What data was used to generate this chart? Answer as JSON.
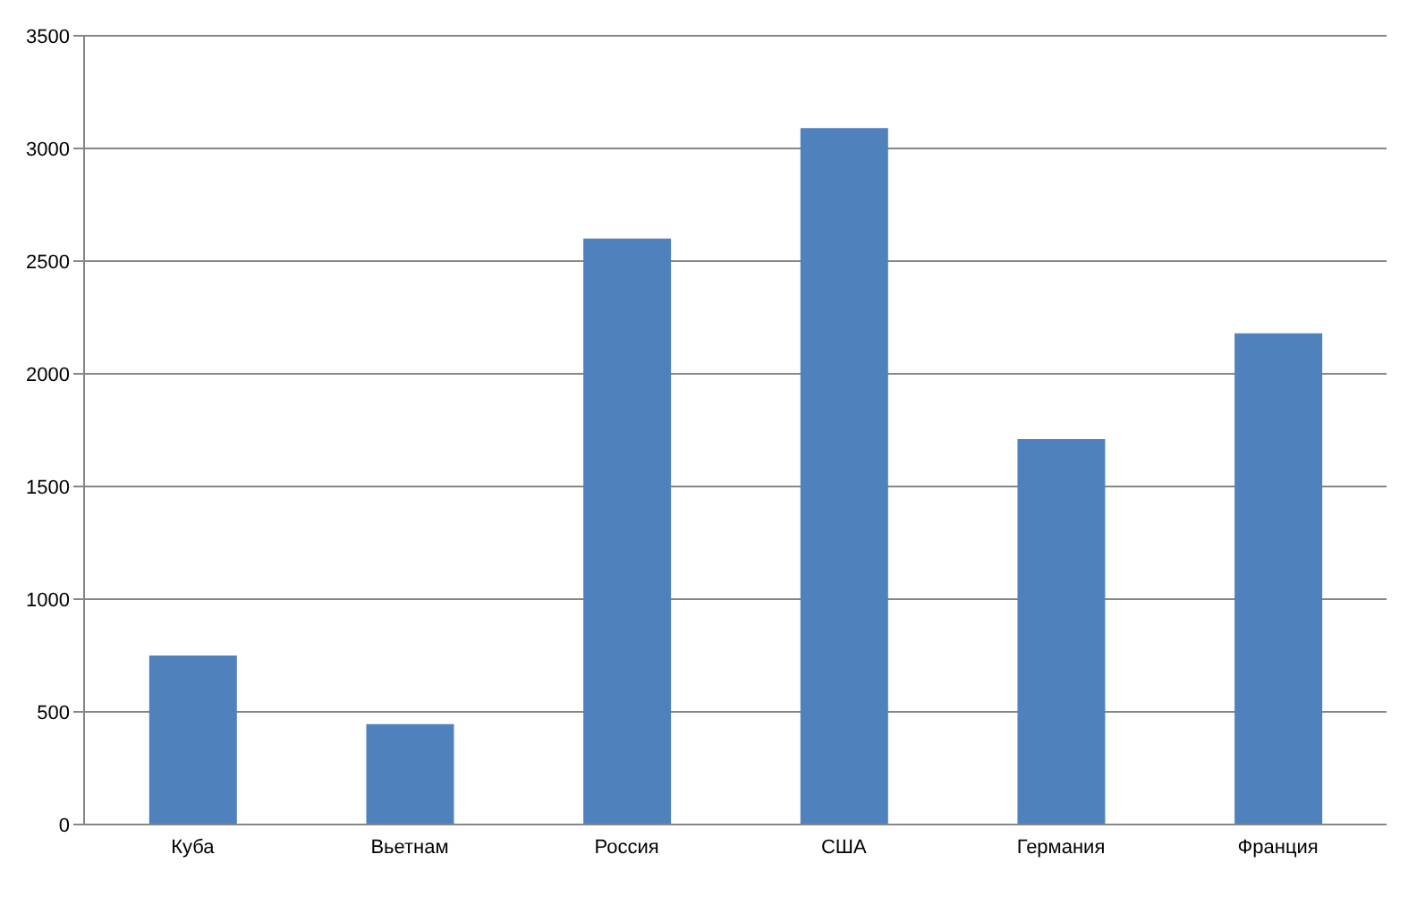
{
  "chart_data": {
    "type": "bar",
    "categories": [
      "Куба",
      "Вьетнам",
      "Россия",
      "США",
      "Германия",
      "Франция"
    ],
    "values": [
      750,
      445,
      2600,
      3090,
      1710,
      2180
    ],
    "color": "#4f81bd",
    "ylim": [
      0,
      3500
    ],
    "yticks": [
      0,
      500,
      1000,
      1500,
      2000,
      2500,
      3000,
      3500
    ],
    "grid": "y"
  }
}
